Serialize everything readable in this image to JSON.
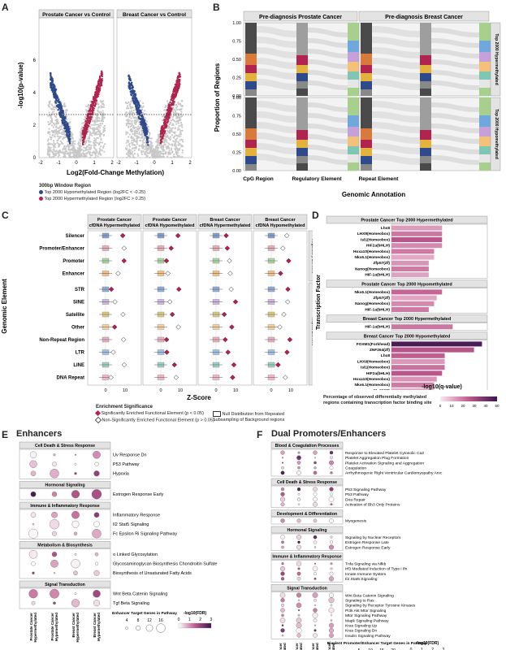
{
  "panelA": {
    "label": "A",
    "titles": [
      "Prostate Cancer vs Control",
      "Breast Cancer vs Control"
    ],
    "ylabel": "-log10(p-value)",
    "xlabel": "Log2(Fold-Change Methylation)",
    "legend_title": "300bp Window Region",
    "legend": [
      {
        "text": "Top 2000 Hypomethylated Region (log2FC < -0.25)",
        "color": "#2f4a8c"
      },
      {
        "text": "Top 2000 Hypermethylated Region (log2FC > 0.25)",
        "color": "#b0244f"
      }
    ],
    "yticks": [
      "0",
      "2",
      "4",
      "6"
    ],
    "xticks": [
      "-2",
      "-1",
      "0",
      "1",
      "2"
    ]
  },
  "panelB": {
    "label": "B",
    "titles": [
      "Pre-diagnosis Prostate Cancer",
      "Pre-diagnosis Breast Cancer"
    ],
    "ylabel": "Proportion of Regions",
    "xlabel": "Genomic Annotation",
    "xcats": [
      "CpG Region",
      "Regulatory Element",
      "Repeat Element"
    ],
    "row_labels": [
      "Top 2000 Hypermethylated",
      "Top 2000 Hypomethylated"
    ],
    "yticks": [
      "0.00",
      "0.25",
      "0.50",
      "0.75",
      "1.00"
    ]
  },
  "panelC": {
    "label": "C",
    "columns": [
      "Prostate Cancer cfDNA Hypermethylated",
      "Prostate Cancer cfDNA Hypomethylated",
      "Breast Cancer cfDNA Hypermethylated",
      "Breast Cancer cfDNA Hypomethylated"
    ],
    "rows": [
      "Silencer",
      "Promoter/Enhancer",
      "Promoter",
      "Enhancer",
      "STR",
      "SINE",
      "Satellite",
      "Other",
      "Non-Repeat Region",
      "LTR",
      "LINE",
      "DNA Repeat"
    ],
    "ylabel": "Genomic Element",
    "xlabel": "Z-Score",
    "xticks": [
      "0",
      "10"
    ],
    "side_labels": [
      "Regulatory Element",
      "Repeat Element"
    ],
    "legend_title": "Enrichment Significance",
    "legend": [
      "Significantly Enriched Functional Element (p < 0.05)",
      "Non-Significantly Enriched Functional Element (p > 0.05)",
      "Null Distribution from Repeated Subsampling of Background regions"
    ]
  },
  "panelD": {
    "label": "D",
    "ylabel": "Transcription Factor",
    "xlabel": "-log10(q-value)",
    "groups": [
      {
        "title": "Prostate Cancer Top 2000 Hypermethylated",
        "items": [
          "Lhx8",
          "LHX9(Homeobox)",
          "Isl1(Homeobox)",
          "HIF2a(bHLH)",
          "Hoxa10(Homeobox)",
          "Nkx6.1(Homeobox)",
          "Zfp57(Zf)",
          "Nanog(Homeobox)",
          "HIF-1a(bHLH)"
        ],
        "values": [
          1.9,
          1.9,
          1.9,
          1.9,
          1.6,
          1.6,
          1.4,
          1.4,
          1.4
        ]
      },
      {
        "title": "Prostate Cancer Top 2000 Hypomethylated",
        "items": [
          "Nkx6.1(Homeobox)",
          "Zfp57(Zf)",
          "Nanog(Homeobox)",
          "HIF-1a(bHLH)"
        ],
        "values": [
          1.9,
          1.7,
          1.6,
          1.4
        ]
      },
      {
        "title": "Breast Cancer Top 2000 Hypermethylated",
        "items": [
          "HIF-1a(bHLH)"
        ],
        "values": [
          2.3
        ]
      },
      {
        "title": "Breast Cancer Top 2000 Hypomethylated",
        "items": [
          "FOXM1(Forkhead)",
          "ZNF264(Zf)",
          "Lhx8",
          "LHX9(Homeobox)",
          "Isl1(Homeobox)",
          "HIF2a(bHLH)",
          "Hoxa10(Homeobox)",
          "Nkx6.1(Homeobox)",
          "Zfp57(Zf)",
          "Nanog(Homeobox)",
          "HIF-1a(bHLH)"
        ],
        "values": [
          3.4,
          3.1,
          2.0,
          2.0,
          2.0,
          1.9,
          1.7,
          1.6,
          1.6,
          1.5,
          1.5
        ]
      }
    ],
    "xticks": [
      "0",
      "1",
      "2",
      "3"
    ],
    "legend_title": "Percentage of observed differentially methylated regions containing transcription factor binding site",
    "legend_ticks": [
      "0",
      "10",
      "20",
      "30",
      "40",
      "50"
    ]
  },
  "panelE": {
    "label": "E",
    "title": "Enhancers",
    "groups": [
      {
        "title": "Cell Death & Stress Response",
        "items": [
          "Uv Response Dn",
          "P53 Pathway",
          "Hypoxia"
        ]
      },
      {
        "title": "Hormonal Signaling",
        "items": [
          "Estrogen Response Early"
        ]
      },
      {
        "title": "Immune & Inflammatory Response",
        "items": [
          "Inflammatory Response",
          "Il2 Stat5 Signaling",
          "Fc Epsilon Ri Signaling Pathway"
        ]
      },
      {
        "title": "Metabolism & Biosynthesis",
        "items": [
          "o Linked Glycosylation",
          "Glycosaminoglycan Biosynthesis Chondroitin Sulfate",
          "Biosynthesis of Unsaturated Fatty Acids"
        ]
      },
      {
        "title": "Signal Transduction",
        "items": [
          "Wnt Beta Catenin Signaling",
          "Tgf Beta Signaling"
        ]
      }
    ],
    "columns": [
      "Prostate Cancer Hypermethylated",
      "Prostate Cancer Hypomethylated",
      "Breast Cancer Hypermethylated",
      "Breast Cancer Hypomethylated"
    ],
    "size_legend_title": "Enhancer Target Genes in Pathway",
    "size_legend": [
      "4",
      "8",
      "12",
      "16"
    ],
    "color_legend_title": "-log10(FDR)",
    "color_legend": [
      "0",
      "1",
      "2",
      "3"
    ]
  },
  "panelF": {
    "label": "F",
    "title": "Dual Promoters/Enhancers",
    "groups": [
      {
        "title": "Blood & Coagulation Processes",
        "items": [
          "Response to Elevated Platelet Cytosolic Ca2",
          "Platelet Aggregation Plug Formation",
          "Platelet Activation Signaling and Aggregation",
          "Coagulation",
          "Arrhythmogenic Right Ventricular Cardiomyopathy Arvc"
        ]
      },
      {
        "title": "Cell Death & Stress Response",
        "items": [
          "P53 Signaling Pathway",
          "P53 Pathway",
          "Dna Repair",
          "Activation of Bh3 Only Proteins"
        ]
      },
      {
        "title": "Development & Differentiation",
        "items": [
          "Myogenesis"
        ]
      },
      {
        "title": "Hormonal Signaling",
        "items": [
          "Signaling by Nuclear Receptors",
          "Estrogen Response Late",
          "Estrogen Response Early"
        ]
      },
      {
        "title": "Immune & Inflammatory Response",
        "items": [
          "Tnfa Signaling via Nfkb",
          "Irf3 Mediated Induction of Type i Ifn",
          "Innate Immune System",
          "Il2 Stat5 Signaling"
        ]
      },
      {
        "title": "Signal Transduction",
        "items": [
          "Wnt Beta Catenin Signaling",
          "Signaling to Ras",
          "Signaling by Receptor Tyrosine Kinases",
          "Pi3k Akt Mtor Signaling",
          "Mtor Signaling Pathway",
          "Mapk Signaling Pathway",
          "Kras Signaling Up",
          "Kras Signaling Dn",
          "Insulin Signaling Pathway"
        ]
      }
    ],
    "columns": [
      "Prostate Cancer Hypermethylated",
      "Prostate Cancer Hypomethylated",
      "Breast Cancer Hypermethylated",
      "Breast Cancer Hypomethylated"
    ],
    "size_legend_title": "Bivalent Promoter/Enhancer Target Genes in Pathway",
    "size_legend": [
      "5",
      "10",
      "15",
      "20"
    ],
    "color_legend_title": "-log10(FDR)",
    "color_legend": [
      "0",
      "1",
      "2",
      "3"
    ]
  }
}
